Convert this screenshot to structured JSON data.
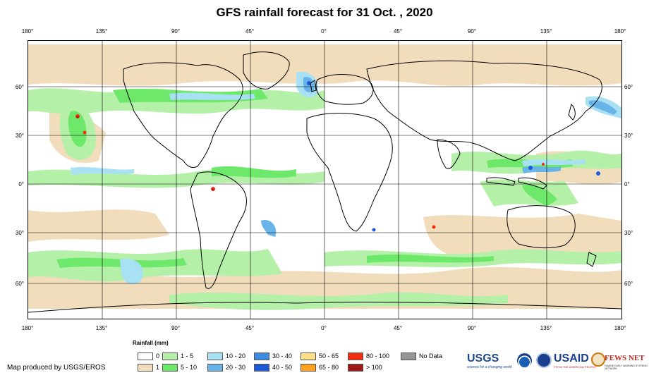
{
  "title": "GFS rainfall forecast for 31 Oct. , 2020",
  "map": {
    "lon_ticks": [
      "180°",
      "135°",
      "90°",
      "45°",
      "0°",
      "45°",
      "90°",
      "135°",
      "180°"
    ],
    "lat_ticks": [
      "60°",
      "30°",
      "0°",
      "30°",
      "60°"
    ],
    "lat_values": [
      60,
      30,
      0,
      -30,
      -60
    ]
  },
  "legend": {
    "title": "Rainfall (mm)",
    "items": [
      {
        "label": "0",
        "color": "#ffffff"
      },
      {
        "label": "1",
        "color": "#f1dcbc"
      },
      {
        "label": "1 - 5",
        "color": "#b4f0a8"
      },
      {
        "label": "5 - 10",
        "color": "#6ee86a"
      },
      {
        "label": "10 - 20",
        "color": "#a8e0f4"
      },
      {
        "label": "20 - 30",
        "color": "#68b4e8"
      },
      {
        "label": "30 - 40",
        "color": "#3e8ae0"
      },
      {
        "label": "40 - 50",
        "color": "#1e5ad8"
      },
      {
        "label": "50 - 65",
        "color": "#ffe08a"
      },
      {
        "label": "65 - 80",
        "color": "#ffa020"
      },
      {
        "label": "80 - 100",
        "color": "#f03010"
      },
      {
        "label": "> 100",
        "color": "#a01818"
      },
      {
        "label": "No Data",
        "color": "#969696"
      }
    ]
  },
  "credit": "Map produced by USGS/EROS",
  "logos": {
    "usgs": "USGS",
    "usgs_tagline": "science for a changing world",
    "noaa_icon": "noaa-logo-icon",
    "usaid": "USAID",
    "usaid_tagline": "FROM THE AMERICAN PEOPLE",
    "fews": "FEWS NET",
    "fews_tagline": "FAMINE EARLY WARNING SYSTEMS NETWORK"
  }
}
